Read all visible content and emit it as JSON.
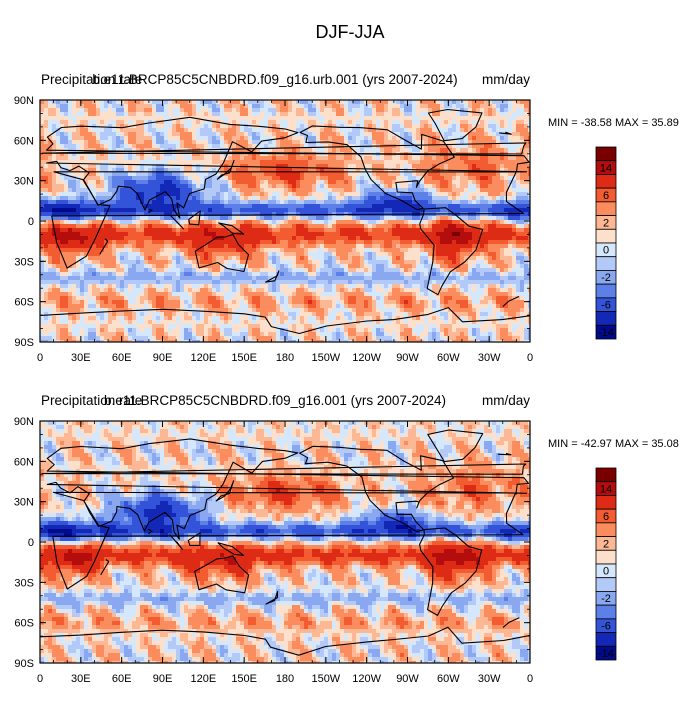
{
  "figure": {
    "title": "DJF-JJA"
  },
  "chart_data": [
    {
      "type": "heatmap",
      "left_title": "Precipitation rate",
      "center_title": "b.e11.BRCP85C5CNBDRD.f09_g16.urb.001 (yrs 2007-2024)",
      "units": "mm/day",
      "stats": "MIN = -38.58 MAX =  35.89",
      "xlim": [
        0,
        360
      ],
      "ylim": [
        -90,
        90
      ],
      "x_ticks": [
        "0",
        "30E",
        "60E",
        "90E",
        "120E",
        "150E",
        "180",
        "150W",
        "120W",
        "90W",
        "60W",
        "30W",
        "0"
      ],
      "y_ticks": [
        "90S",
        "60S",
        "30S",
        "0",
        "30N",
        "60N",
        "90N"
      ],
      "colorbar_labels": [
        "14",
        "6",
        "2",
        "0",
        "-2",
        "-6",
        "-14"
      ]
    },
    {
      "type": "heatmap",
      "left_title": "Precipitation rate",
      "center_title": "b.e11.BRCP85C5CNBDRD.f09_g16.001 (yrs 2007-2024)",
      "units": "mm/day",
      "stats": "MIN = -42.97 MAX =  35.08",
      "xlim": [
        0,
        360
      ],
      "ylim": [
        -90,
        90
      ],
      "x_ticks": [
        "0",
        "30E",
        "60E",
        "90E",
        "120E",
        "150E",
        "180",
        "150W",
        "120W",
        "90W",
        "60W",
        "30W",
        "0"
      ],
      "y_ticks": [
        "90S",
        "60S",
        "30S",
        "0",
        "30N",
        "60N",
        "90N"
      ],
      "colorbar_labels": [
        "14",
        "6",
        "2",
        "0",
        "-2",
        "-6",
        "-14"
      ]
    }
  ],
  "palette": [
    "#7a0000",
    "#b30d0d",
    "#de2b16",
    "#f35c30",
    "#fa8c5e",
    "#fcb894",
    "#fde0cc",
    "#d5e8fb",
    "#b3c9f8",
    "#8aa8f0",
    "#5d7fe8",
    "#3354d9",
    "#1428b8",
    "#000a8c"
  ]
}
